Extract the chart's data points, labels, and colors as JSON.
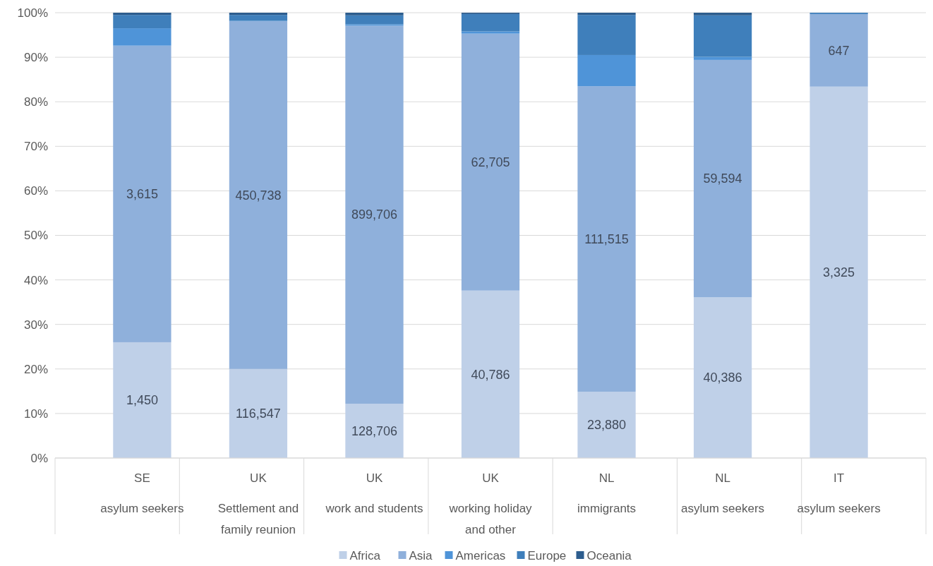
{
  "chart_data": {
    "type": "bar",
    "stacked": true,
    "categories": [
      "SE\nasylum seekers",
      "UK\nSettlement and\nfamily reunion",
      "UK\nwork and students",
      "UK\nworking holiday\nand other",
      "NL\nimmigrants",
      "NL\nasylum seekers",
      "IT\nasylum seekers"
    ],
    "series": [
      {
        "name": "Africa",
        "color": "#bfd0e8",
        "values": [
          26.0,
          20.0,
          12.2,
          37.6,
          14.9,
          36.1,
          83.4
        ]
      },
      {
        "name": "Asia",
        "color": "#8fb0db",
        "values": [
          66.6,
          78.1,
          84.9,
          57.7,
          68.6,
          53.3,
          16.3
        ]
      },
      {
        "name": "Americas",
        "color": "#4f94d8",
        "values": [
          3.9,
          0.1,
          0.3,
          0.5,
          7.0,
          0.7,
          0
        ]
      },
      {
        "name": "Europe",
        "color": "#3f7fbb",
        "values": [
          3.0,
          1.3,
          2.0,
          3.9,
          9.0,
          9.3,
          0.3
        ]
      },
      {
        "name": "Oceania",
        "color": "#2d5d8e",
        "values": [
          0.5,
          0.5,
          0.6,
          0.3,
          0.5,
          0.6,
          0
        ]
      }
    ],
    "annotations": [
      "1,450",
      "116,547",
      "128,706",
      "40,786",
      "23,880",
      "40,386",
      "3,325",
      "3,615",
      "450,738",
      "899,706",
      "62,705",
      "111,515",
      "59,594",
      "647"
    ],
    "ylim": [
      0,
      100
    ],
    "yticks": [
      {
        "value": 0,
        "label": "0%"
      },
      {
        "value": 10,
        "label": "10%"
      },
      {
        "value": 20,
        "label": "20%"
      },
      {
        "value": 30,
        "label": "30%"
      },
      {
        "value": 40,
        "label": "40%"
      },
      {
        "value": 50,
        "label": "50%"
      },
      {
        "value": 60,
        "label": "60%"
      },
      {
        "value": 70,
        "label": "70%"
      },
      {
        "value": 80,
        "label": "80%"
      },
      {
        "value": 90,
        "label": "90%"
      },
      {
        "value": 100,
        "label": "100%"
      }
    ],
    "grid": "y",
    "legend": "bottom"
  }
}
